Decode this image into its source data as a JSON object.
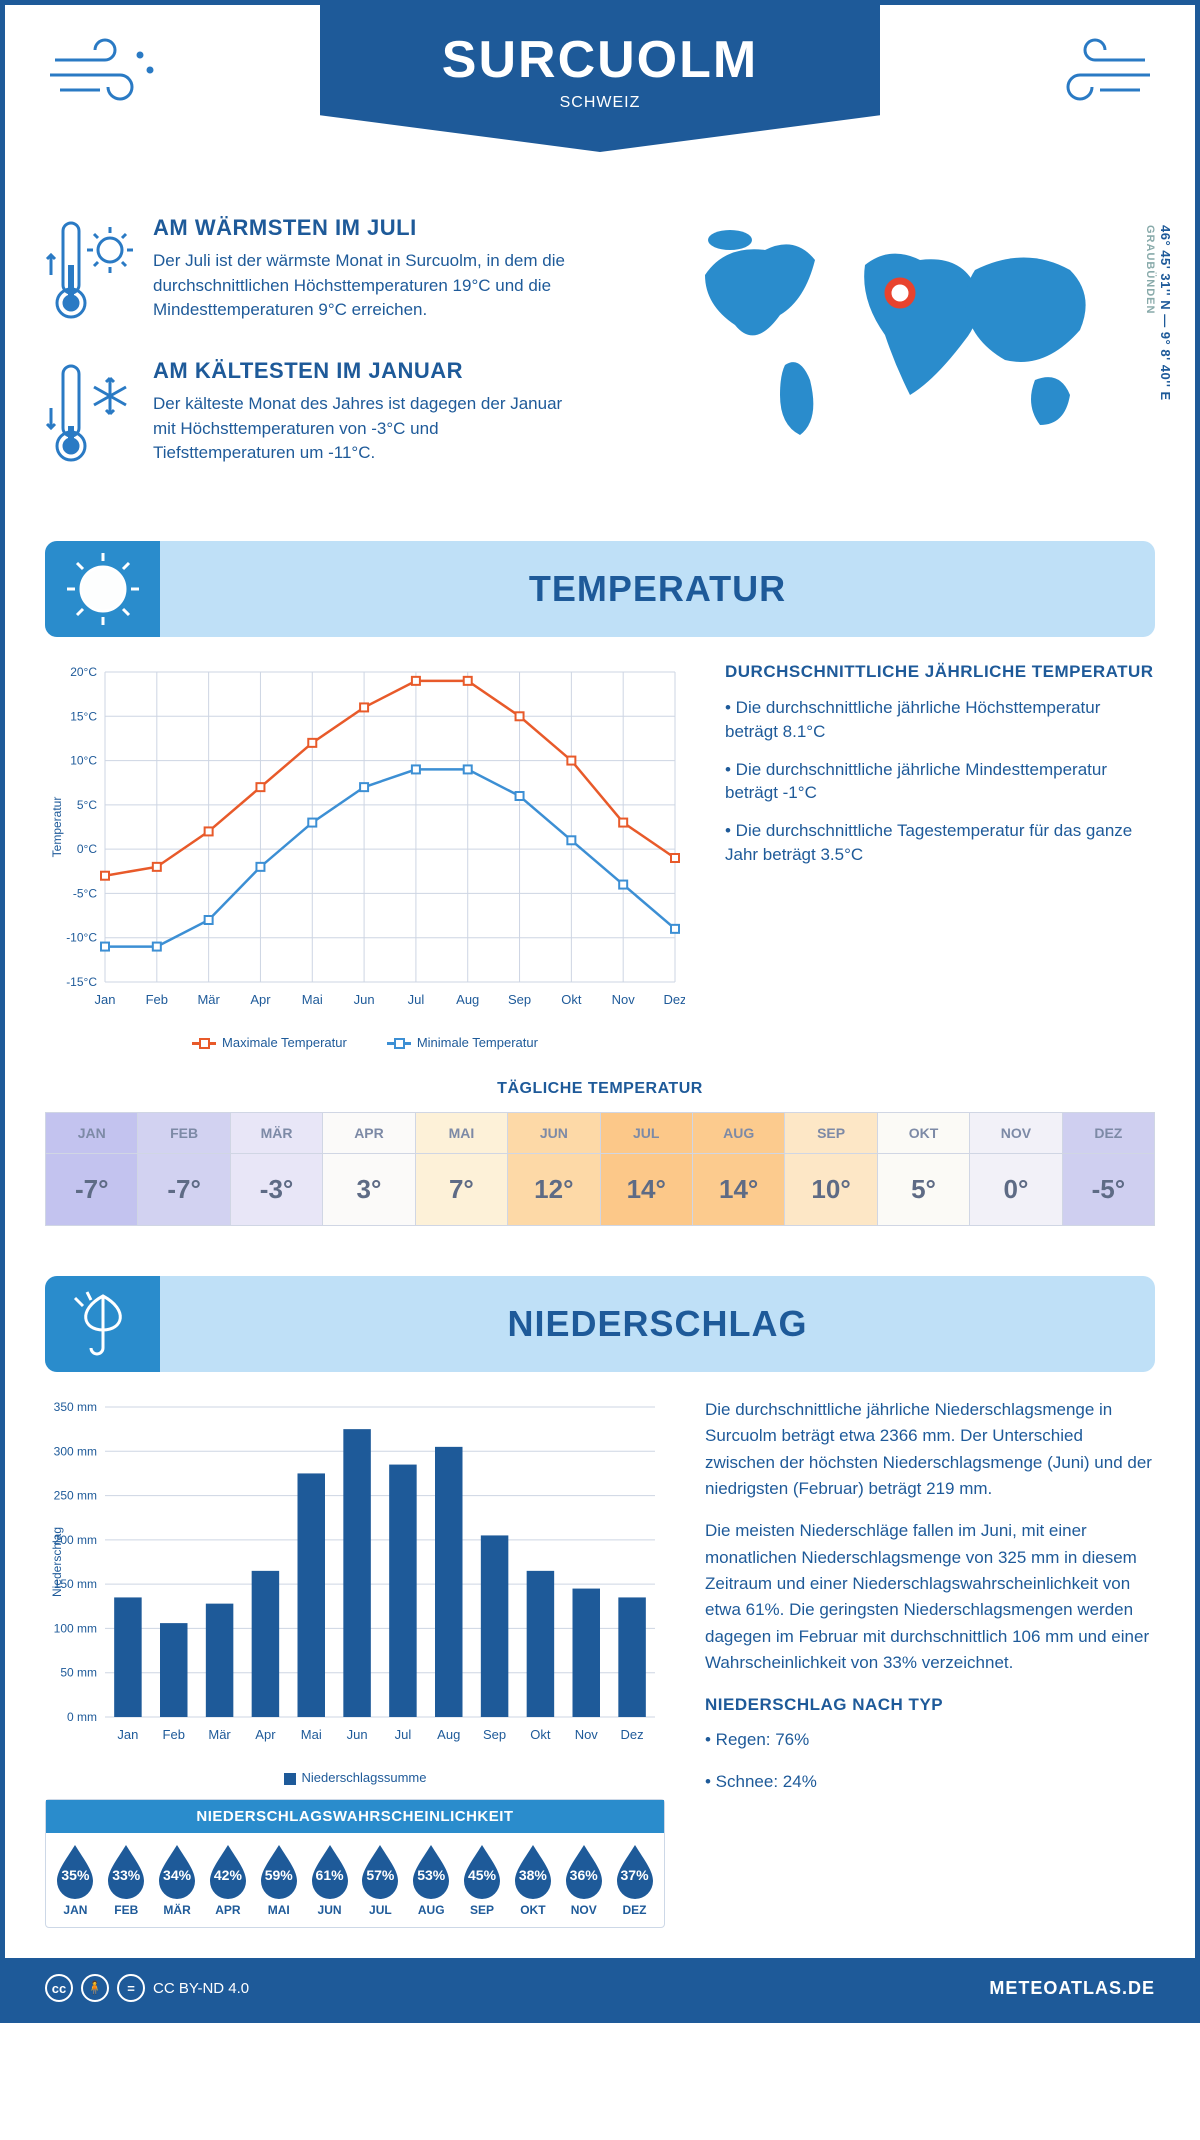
{
  "header": {
    "title": "SURCUOLM",
    "subtitle": "SCHWEIZ"
  },
  "coords": {
    "lat": "46° 45' 31'' N — 9° 8' 40'' E",
    "region": "GRAUBÜNDEN"
  },
  "intro": {
    "warm": {
      "title": "AM WÄRMSTEN IM JULI",
      "text": "Der Juli ist der wärmste Monat in Surcuolm, in dem die durchschnittlichen Höchsttemperaturen 19°C und die Mindesttemperaturen 9°C erreichen."
    },
    "cold": {
      "title": "AM KÄLTESTEN IM JANUAR",
      "text": "Der kälteste Monat des Jahres ist dagegen der Januar mit Höchsttemperaturen von -3°C und Tiefsttemperaturen um -11°C."
    }
  },
  "sections": {
    "temperature": "TEMPERATUR",
    "precipitation": "NIEDERSCHLAG"
  },
  "months": [
    "Jan",
    "Feb",
    "Mär",
    "Apr",
    "Mai",
    "Jun",
    "Jul",
    "Aug",
    "Sep",
    "Okt",
    "Nov",
    "Dez"
  ],
  "months_uc": [
    "JAN",
    "FEB",
    "MÄR",
    "APR",
    "MAI",
    "JUN",
    "JUL",
    "AUG",
    "SEP",
    "OKT",
    "NOV",
    "DEZ"
  ],
  "temp_chart": {
    "type": "line",
    "ylabel": "Temperatur",
    "ylim": [
      -15,
      20
    ],
    "ytick_step": 5,
    "series": {
      "max": {
        "label": "Maximale Temperatur",
        "color": "#e85a2a",
        "values": [
          -3,
          -2,
          2,
          7,
          12,
          16,
          19,
          19,
          15,
          10,
          3,
          -1
        ]
      },
      "min": {
        "label": "Minimale Temperatur",
        "color": "#3c8fd4",
        "values": [
          -11,
          -11,
          -8,
          -2,
          3,
          7,
          9,
          9,
          6,
          1,
          -4,
          -9
        ]
      }
    },
    "grid_color": "#cdd5e3",
    "background": "#ffffff",
    "marker": "square"
  },
  "temp_info": {
    "title": "DURCHSCHNITTLICHE JÄHRLICHE TEMPERATUR",
    "lines": [
      "• Die durchschnittliche jährliche Höchsttemperatur beträgt 8.1°C",
      "• Die durchschnittliche jährliche Mindesttemperatur beträgt -1°C",
      "• Die durchschnittliche Tagestemperatur für das ganze Jahr beträgt 3.5°C"
    ]
  },
  "daily_temp": {
    "title": "TÄGLICHE TEMPERATUR",
    "values": [
      "-7°",
      "-7°",
      "-3°",
      "3°",
      "7°",
      "12°",
      "14°",
      "14°",
      "10°",
      "5°",
      "0°",
      "-5°"
    ],
    "bg_colors": [
      "#c3c3ef",
      "#d2d2f1",
      "#e8e6f7",
      "#fbfaf9",
      "#fdf1d8",
      "#fdd9a7",
      "#fcc889",
      "#fccb8e",
      "#fde7c6",
      "#fbfaf6",
      "#f2f1f8",
      "#cfcff0"
    ]
  },
  "precip_chart": {
    "type": "bar",
    "ylabel": "Niederschlag",
    "ylim": [
      0,
      350
    ],
    "ytick_step": 50,
    "values": [
      135,
      106,
      128,
      165,
      275,
      325,
      285,
      305,
      205,
      165,
      145,
      135
    ],
    "bar_color": "#1e5a99",
    "grid_color": "#cdd5e3",
    "legend": "Niederschlagssumme"
  },
  "precip_text": {
    "p1": "Die durchschnittliche jährliche Niederschlagsmenge in Surcuolm beträgt etwa 2366 mm. Der Unterschied zwischen der höchsten Niederschlagsmenge (Juni) und der niedrigsten (Februar) beträgt 219 mm.",
    "p2": "Die meisten Niederschläge fallen im Juni, mit einer monatlichen Niederschlagsmenge von 325 mm in diesem Zeitraum und einer Niederschlagswahrscheinlichkeit von etwa 61%. Die geringsten Niederschlagsmengen werden dagegen im Februar mit durchschnittlich 106 mm und einer Wahrscheinlichkeit von 33% verzeichnet.",
    "type_title": "NIEDERSCHLAG NACH TYP",
    "types": [
      "• Regen: 76%",
      "• Schnee: 24%"
    ]
  },
  "probability": {
    "title": "NIEDERSCHLAGSWAHRSCHEINLICHKEIT",
    "values": [
      "35%",
      "33%",
      "34%",
      "42%",
      "59%",
      "61%",
      "57%",
      "53%",
      "45%",
      "38%",
      "36%",
      "37%"
    ],
    "drop_color": "#1e5a99"
  },
  "footer": {
    "license": "CC BY-ND 4.0",
    "brand": "METEOATLAS.DE"
  },
  "colors": {
    "primary": "#1e5a99",
    "accent": "#2a8ccc",
    "light": "#bfe0f7"
  }
}
